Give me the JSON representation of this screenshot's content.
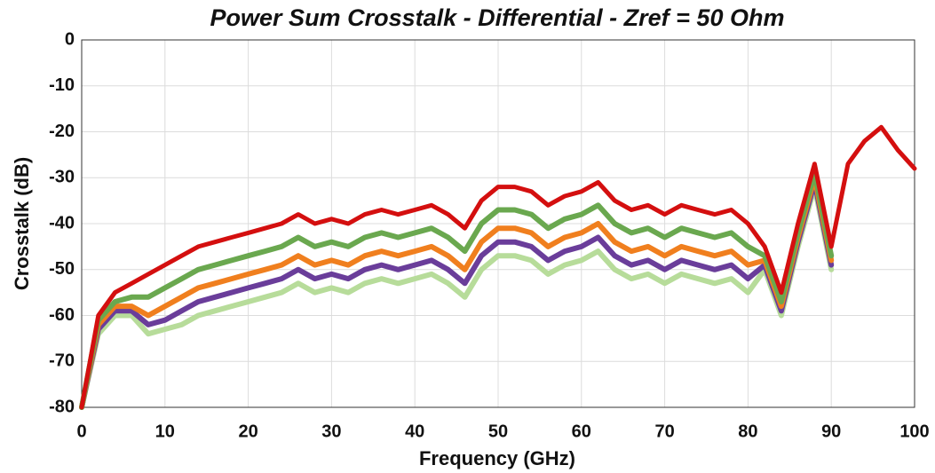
{
  "chart_data": {
    "type": "line",
    "title": "Power Sum Crosstalk - Differential - Zref =  50 Ohm",
    "x_label": "Frequency (GHz)",
    "y_label": "Crosstalk (dB)",
    "x": [
      0,
      2,
      4,
      6,
      8,
      10,
      12,
      14,
      16,
      18,
      20,
      22,
      24,
      26,
      28,
      30,
      32,
      34,
      36,
      38,
      40,
      42,
      44,
      46,
      48,
      50,
      52,
      54,
      56,
      58,
      60,
      62,
      64,
      66,
      68,
      70,
      72,
      74,
      76,
      78,
      80,
      82,
      84,
      86,
      88,
      90,
      92,
      94,
      96,
      98,
      100
    ],
    "xlim": [
      0,
      100
    ],
    "xticks": [
      0,
      10,
      20,
      30,
      40,
      50,
      60,
      70,
      80,
      90,
      100
    ],
    "ylim": [
      -80,
      0
    ],
    "yticks": [
      0,
      -10,
      -20,
      -30,
      -40,
      -50,
      -60,
      -70,
      -80
    ],
    "grid": true,
    "series": [
      {
        "color": "#b7dc9a",
        "values": [
          -80,
          -64,
          -60,
          -60,
          -64,
          -63,
          -62,
          -60,
          -59,
          -58,
          -57,
          -56,
          -55,
          -53,
          -55,
          -54,
          -55,
          -53,
          -52,
          -53,
          -52,
          -51,
          -53,
          -56,
          -50,
          -47,
          -47,
          -48,
          -51,
          -49,
          -48,
          -46,
          -50,
          -52,
          -51,
          -53,
          -51,
          -52,
          -53,
          -52,
          -55,
          -50,
          -60,
          -45,
          -32,
          -50,
          null,
          null,
          null,
          null,
          null
        ]
      },
      {
        "color": "#6a3d9a",
        "values": [
          -80,
          -63,
          -59,
          -59,
          -62,
          -61,
          -59,
          -57,
          -56,
          -55,
          -54,
          -53,
          -52,
          -50,
          -52,
          -51,
          -52,
          -50,
          -49,
          -50,
          -49,
          -48,
          -50,
          -53,
          -47,
          -44,
          -44,
          -45,
          -48,
          -46,
          -45,
          -43,
          -47,
          -49,
          -48,
          -50,
          -48,
          -49,
          -50,
          -49,
          -52,
          -49,
          -59,
          -44,
          -31,
          -49,
          null,
          null,
          null,
          null,
          null
        ]
      },
      {
        "color": "#f07f1e",
        "values": [
          -80,
          -62,
          -58,
          -58,
          -60,
          -58,
          -56,
          -54,
          -53,
          -52,
          -51,
          -50,
          -49,
          -47,
          -49,
          -48,
          -49,
          -47,
          -46,
          -47,
          -46,
          -45,
          -47,
          -50,
          -44,
          -41,
          -41,
          -42,
          -45,
          -43,
          -42,
          -40,
          -44,
          -46,
          -45,
          -47,
          -45,
          -46,
          -47,
          -46,
          -49,
          -48,
          -58,
          -43,
          -30,
          -48,
          null,
          null,
          null,
          null,
          null
        ]
      },
      {
        "color": "#6aa84f",
        "values": [
          -80,
          -61,
          -57,
          -56,
          -56,
          -54,
          -52,
          -50,
          -49,
          -48,
          -47,
          -46,
          -45,
          -43,
          -45,
          -44,
          -45,
          -43,
          -42,
          -43,
          -42,
          -41,
          -43,
          -46,
          -40,
          -37,
          -37,
          -38,
          -41,
          -39,
          -38,
          -36,
          -40,
          -42,
          -41,
          -43,
          -41,
          -42,
          -43,
          -42,
          -45,
          -47,
          -57,
          -42,
          -29,
          -47,
          null,
          null,
          null,
          null,
          null
        ]
      },
      {
        "color": "#d40f0f",
        "values": [
          -80,
          -60,
          -55,
          -53,
          -51,
          -49,
          -47,
          -45,
          -44,
          -43,
          -42,
          -41,
          -40,
          -38,
          -40,
          -39,
          -40,
          -38,
          -37,
          -38,
          -37,
          -36,
          -38,
          -41,
          -35,
          -32,
          -32,
          -33,
          -36,
          -34,
          -33,
          -31,
          -35,
          -37,
          -36,
          -38,
          -36,
          -37,
          -38,
          -37,
          -40,
          -45,
          -55,
          -40,
          -27,
          -45,
          -27,
          -22,
          -19,
          -24,
          -28
        ]
      }
    ]
  }
}
